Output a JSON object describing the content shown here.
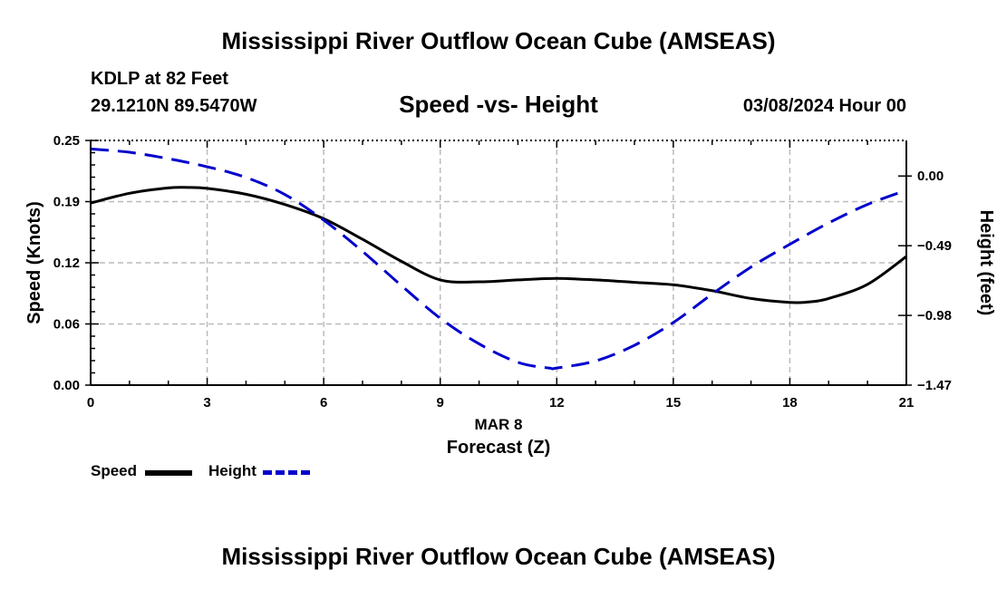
{
  "header": {
    "title": "Mississippi River Outflow Ocean Cube (AMSEAS)",
    "station": "KDLP at 82 Feet",
    "coords": "29.1210N  89.5470W",
    "subtitle": "Speed -vs- Height",
    "datetime": "03/08/2024 Hour 00"
  },
  "footer": {
    "title": "Mississippi River Outflow Ocean Cube (AMSEAS)"
  },
  "legend": {
    "speed_label": "Speed",
    "height_label": "Height"
  },
  "colors": {
    "speed": "#000000",
    "height": "#0000cc",
    "grid": "#bbbbbb"
  },
  "chart_data": {
    "type": "line",
    "title": "Speed -vs- Height",
    "xlabel_date": "MAR 8",
    "xlabel": "Forecast (Z)",
    "ylabel_left": "Speed (Knots)",
    "ylabel_right": "Height (feet)",
    "xlim": [
      0,
      21
    ],
    "ylim_left": [
      0,
      0.25
    ],
    "ylim_right": [
      -1.47,
      0.25
    ],
    "x_ticks": [
      0,
      3,
      6,
      9,
      12,
      15,
      18,
      21
    ],
    "x_tick_labels": [
      "0",
      "3",
      "6",
      "9",
      "12",
      "15",
      "18",
      "21"
    ],
    "y_left_ticks": [
      0,
      0.0625,
      0.125,
      0.1875,
      0.25
    ],
    "y_left_tick_labels": [
      "0.00",
      "0.06",
      "0.12",
      "0.19",
      "0.25"
    ],
    "y_right_ticks": [
      0.0,
      -0.49,
      -0.98,
      -1.47
    ],
    "y_right_tick_labels": [
      "0.00",
      "−0.49",
      "−0.98",
      "−1.47"
    ],
    "grid": true,
    "series": [
      {
        "name": "Speed",
        "axis": "left",
        "style": "solid",
        "x": [
          0,
          1,
          2,
          2.5,
          3,
          4,
          5,
          6,
          7,
          8,
          9,
          10,
          11,
          12,
          13,
          14,
          15,
          16,
          17,
          18,
          18.5,
          19,
          20,
          21
        ],
        "values": [
          0.186,
          0.196,
          0.2015,
          0.202,
          0.201,
          0.195,
          0.1845,
          0.17,
          0.149,
          0.1265,
          0.1075,
          0.1055,
          0.1075,
          0.109,
          0.1075,
          0.105,
          0.1025,
          0.0965,
          0.0885,
          0.0845,
          0.085,
          0.0885,
          0.103,
          0.1315
        ]
      },
      {
        "name": "Height",
        "axis": "right",
        "style": "dashed",
        "x": [
          0,
          1,
          2,
          3,
          4,
          5,
          6,
          7,
          8,
          9,
          10,
          11,
          11.8,
          12,
          13,
          14,
          15,
          16,
          17,
          18,
          19,
          20,
          21
        ],
        "values": [
          0.19,
          0.167,
          0.122,
          0.065,
          -0.01,
          -0.13,
          -0.31,
          -0.53,
          -0.77,
          -1.0,
          -1.18,
          -1.31,
          -1.35,
          -1.35,
          -1.3,
          -1.19,
          -1.03,
          -0.83,
          -0.64,
          -0.48,
          -0.33,
          -0.2,
          -0.1
        ]
      }
    ]
  }
}
